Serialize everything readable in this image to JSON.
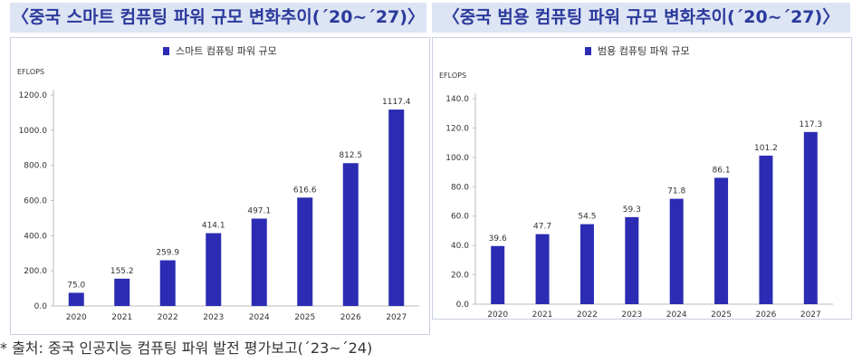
{
  "colors": {
    "bar": "#2b2cb3",
    "axis": "#bbbbbb",
    "text": "#333333",
    "title": "#2b3a9c"
  },
  "titles": {
    "left": "〈중국 스마트 컴퓨팅 파워 규모 변화추이(´20~´27)〉",
    "right": "〈중국 범용 컴퓨팅 파워 규모 변화추이(´20~´27)〉"
  },
  "source": "* 출처: 중국 인공지능 컴퓨팅 파워 발전 평가보고(´23~´24)",
  "chart_data": [
    {
      "type": "bar",
      "legend": "스마트 컴퓨팅 파워 규모",
      "ylabel": "EFLOPS",
      "categories": [
        "2020",
        "2021",
        "2022",
        "2023",
        "2024",
        "2025",
        "2026",
        "2027"
      ],
      "values": [
        75.0,
        155.2,
        259.9,
        414.1,
        497.1,
        616.6,
        812.5,
        1117.4
      ],
      "value_labels": [
        "75.0",
        "155.2",
        "259.9",
        "414.1",
        "497.1",
        "616.6",
        "812.5",
        "1117.4"
      ],
      "yticks": [
        "0.0",
        "200.0",
        "400.0",
        "600.0",
        "800.0",
        "1000.0",
        "1200.0"
      ],
      "ylim": [
        0,
        1200
      ]
    },
    {
      "type": "bar",
      "legend": "범용 컴퓨팅 파워 규모",
      "ylabel": "EFLOPS",
      "categories": [
        "2020",
        "2021",
        "2022",
        "2023",
        "2024",
        "2025",
        "2026",
        "2027"
      ],
      "values": [
        39.6,
        47.7,
        54.5,
        59.3,
        71.8,
        86.1,
        101.2,
        117.3
      ],
      "value_labels": [
        "39.6",
        "47.7",
        "54.5",
        "59.3",
        "71.8",
        "86.1",
        "101.2",
        "117.3"
      ],
      "yticks": [
        "0.0",
        "20.0",
        "40.0",
        "60.0",
        "80.0",
        "100.0",
        "120.0",
        "140.0"
      ],
      "ylim": [
        0,
        140
      ]
    }
  ]
}
